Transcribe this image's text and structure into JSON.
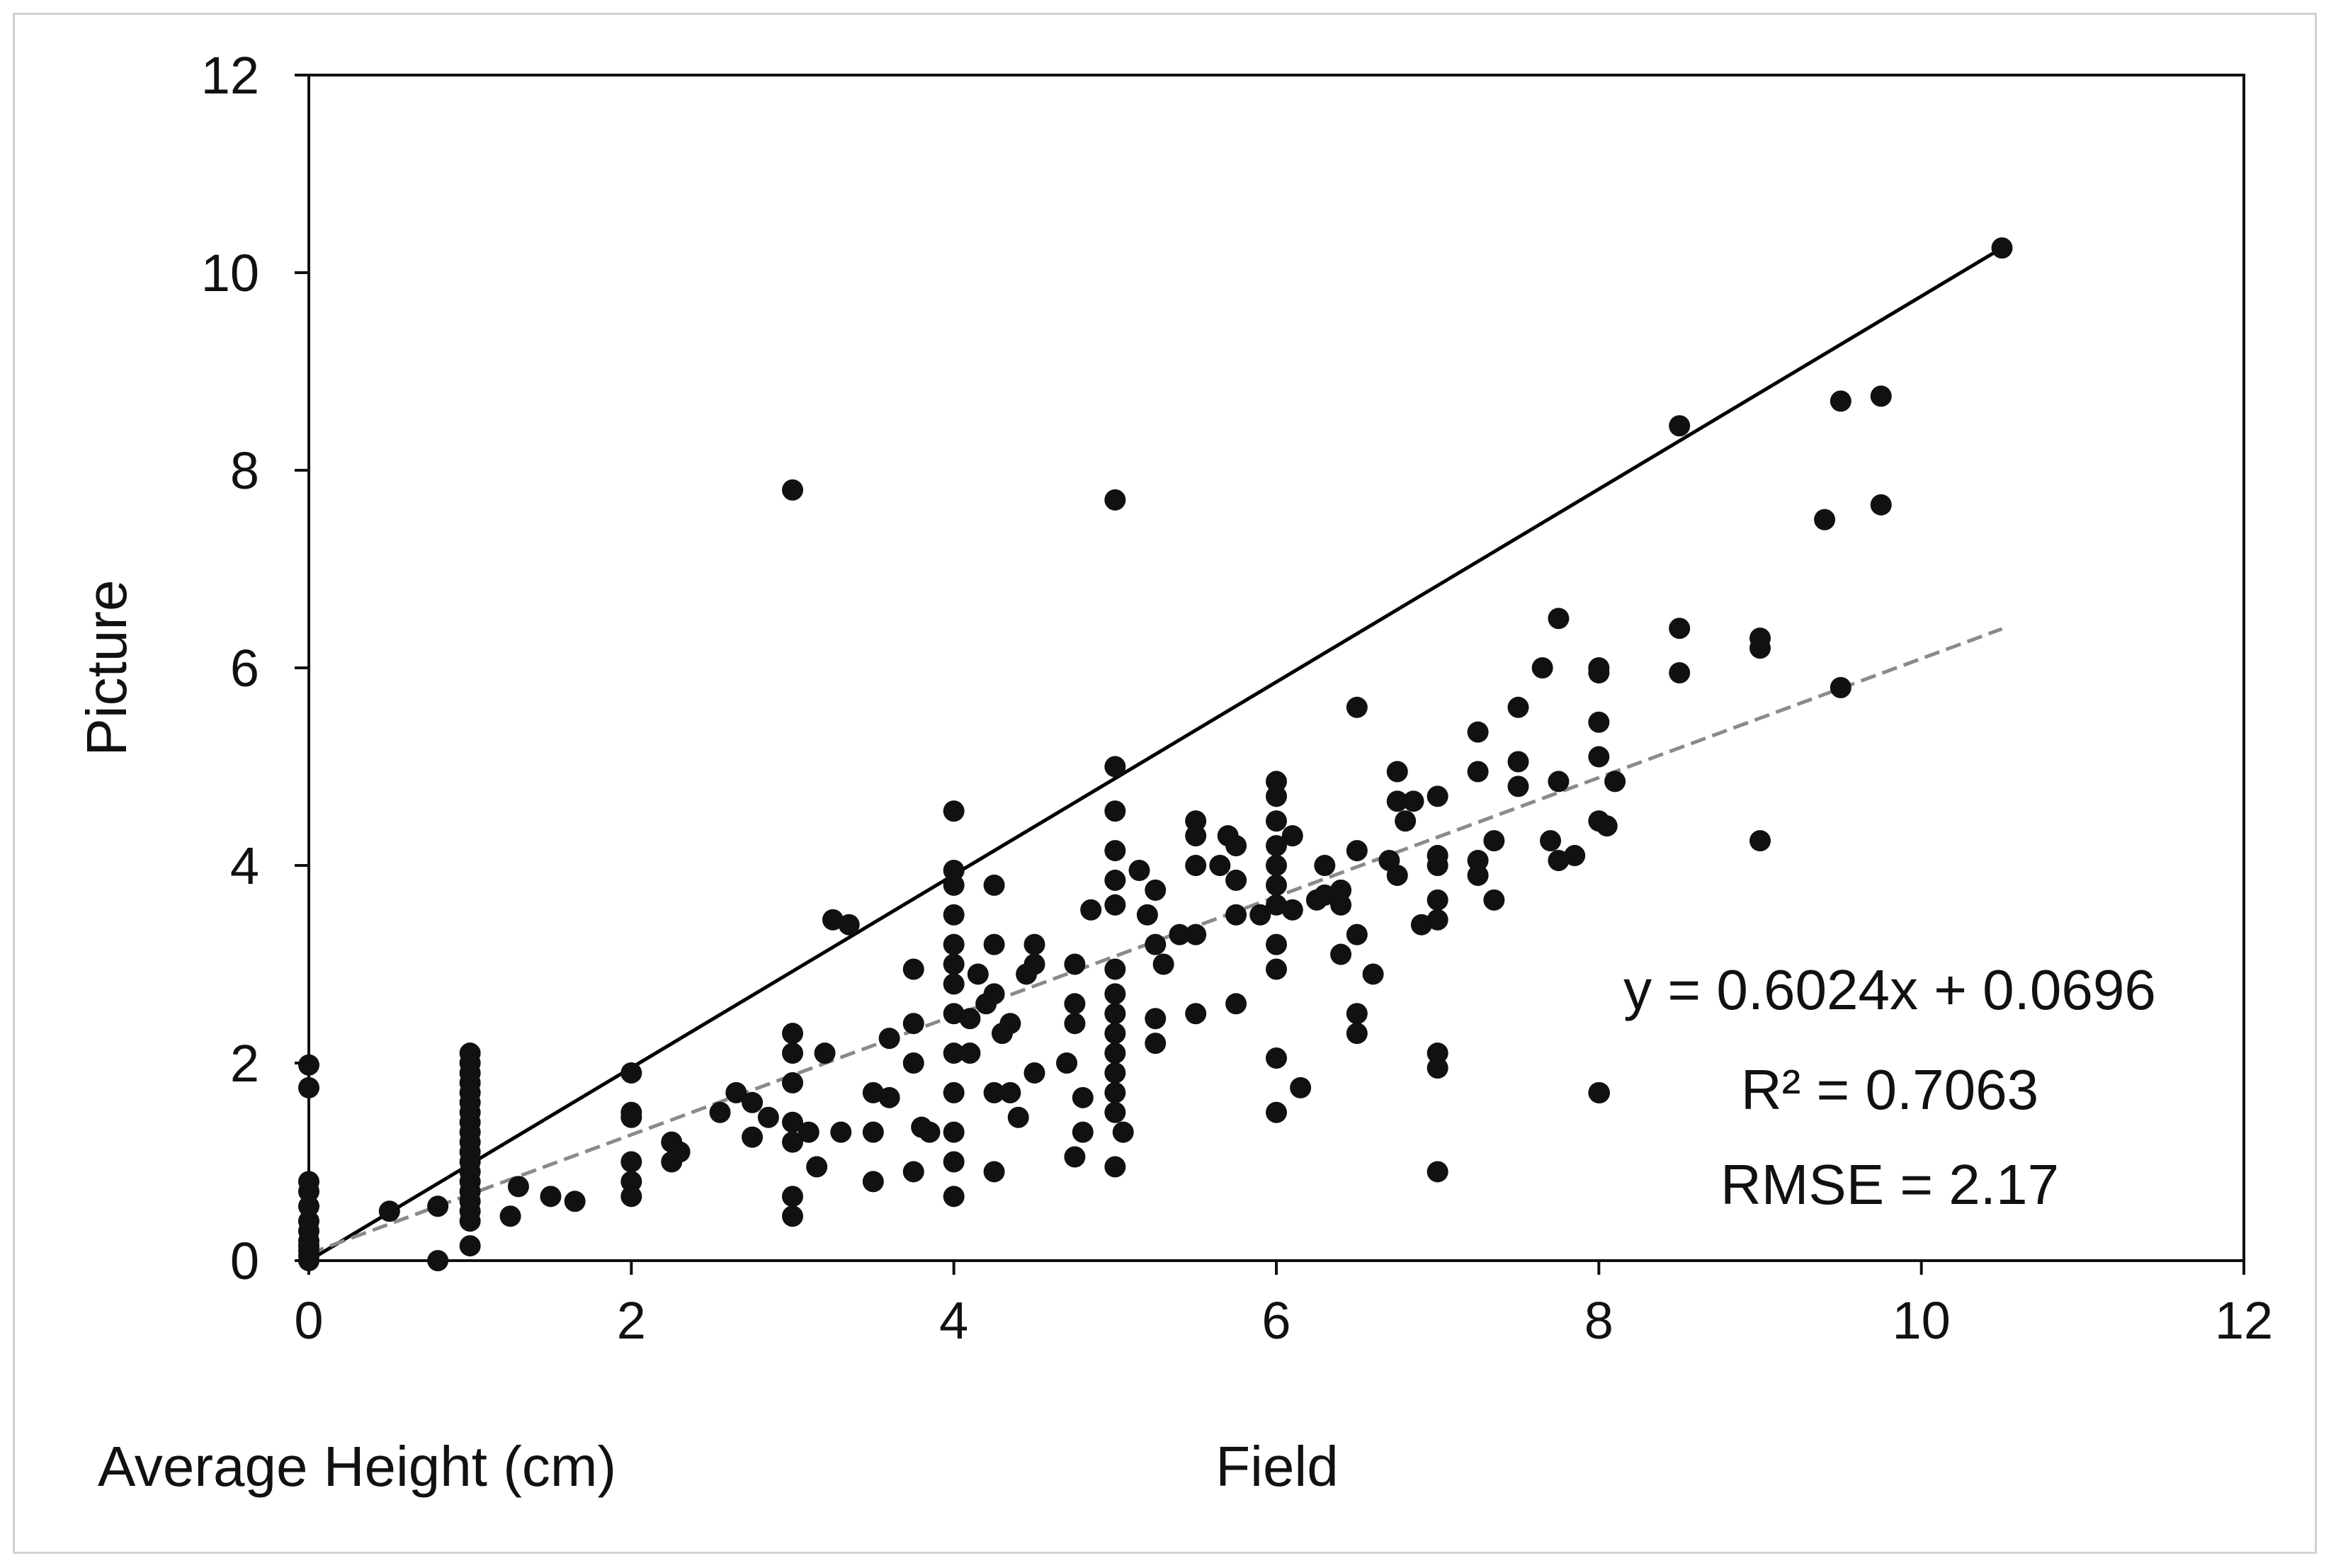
{
  "chart_data": {
    "type": "scatter",
    "title": "",
    "xlabel": "Field",
    "ylabel": "Picture",
    "corner_label": "Average Height (cm)",
    "xlim": [
      0,
      12
    ],
    "ylim": [
      0,
      12
    ],
    "xticks": [
      "0",
      "2",
      "4",
      "6",
      "8",
      "10",
      "12"
    ],
    "yticks": [
      "0",
      "2",
      "4",
      "6",
      "8",
      "10",
      "12"
    ],
    "grid": false,
    "legend": "none",
    "series": [
      {
        "name": "observations",
        "points": [
          [
            0,
            0
          ],
          [
            0,
            0.05
          ],
          [
            0,
            0.1
          ],
          [
            0,
            0.15
          ],
          [
            0,
            0.2
          ],
          [
            0,
            0.3
          ],
          [
            0,
            0.4
          ],
          [
            0,
            0.55
          ],
          [
            0,
            0.7
          ],
          [
            0,
            0.8
          ],
          [
            0,
            1.75
          ],
          [
            0,
            1.98
          ],
          [
            0.5,
            0.5
          ],
          [
            0.8,
            0
          ],
          [
            0.8,
            0.55
          ],
          [
            1,
            0.15
          ],
          [
            1,
            0.4
          ],
          [
            1,
            0.5
          ],
          [
            1,
            0.6
          ],
          [
            1,
            0.7
          ],
          [
            1,
            0.8
          ],
          [
            1,
            0.9
          ],
          [
            1,
            1.0
          ],
          [
            1,
            1.1
          ],
          [
            1,
            1.2
          ],
          [
            1,
            1.3
          ],
          [
            1,
            1.4
          ],
          [
            1,
            1.5
          ],
          [
            1,
            1.6
          ],
          [
            1,
            1.7
          ],
          [
            1,
            1.8
          ],
          [
            1,
            1.9
          ],
          [
            1,
            2.0
          ],
          [
            1,
            2.1
          ],
          [
            1.25,
            0.45
          ],
          [
            1.3,
            0.75
          ],
          [
            1.5,
            0.65
          ],
          [
            1.65,
            0.6
          ],
          [
            2,
            0.65
          ],
          [
            2,
            0.8
          ],
          [
            2,
            1.0
          ],
          [
            2,
            1.45
          ],
          [
            2,
            1.5
          ],
          [
            2,
            1.9
          ],
          [
            2.25,
            1.0
          ],
          [
            2.25,
            1.2
          ],
          [
            2.3,
            1.1
          ],
          [
            2.55,
            1.5
          ],
          [
            2.65,
            1.7
          ],
          [
            2.75,
            1.25
          ],
          [
            2.75,
            1.6
          ],
          [
            2.85,
            1.45
          ],
          [
            3,
            0.45
          ],
          [
            3,
            0.65
          ],
          [
            3,
            1.2
          ],
          [
            3,
            1.4
          ],
          [
            3,
            1.8
          ],
          [
            3,
            2.1
          ],
          [
            3,
            2.3
          ],
          [
            3,
            7.8
          ],
          [
            3.1,
            1.3
          ],
          [
            3.15,
            0.95
          ],
          [
            3.2,
            2.1
          ],
          [
            3.25,
            3.45
          ],
          [
            3.3,
            1.3
          ],
          [
            3.35,
            3.4
          ],
          [
            3.5,
            0.8
          ],
          [
            3.5,
            1.3
          ],
          [
            3.5,
            1.7
          ],
          [
            3.6,
            1.65
          ],
          [
            3.6,
            2.25
          ],
          [
            3.75,
            0.9
          ],
          [
            3.75,
            2.0
          ],
          [
            3.75,
            2.4
          ],
          [
            3.75,
            2.95
          ],
          [
            3.8,
            1.35
          ],
          [
            3.85,
            1.3
          ],
          [
            4,
            0.65
          ],
          [
            4,
            1.0
          ],
          [
            4,
            1.3
          ],
          [
            4,
            1.7
          ],
          [
            4,
            2.1
          ],
          [
            4,
            2.5
          ],
          [
            4,
            2.8
          ],
          [
            4,
            3.0
          ],
          [
            4,
            3.2
          ],
          [
            4,
            3.5
          ],
          [
            4,
            3.8
          ],
          [
            4,
            3.95
          ],
          [
            4,
            4.55
          ],
          [
            4.1,
            2.1
          ],
          [
            4.1,
            2.45
          ],
          [
            4.15,
            2.9
          ],
          [
            4.2,
            2.6
          ],
          [
            4.25,
            0.9
          ],
          [
            4.25,
            1.7
          ],
          [
            4.25,
            2.7
          ],
          [
            4.25,
            3.2
          ],
          [
            4.25,
            3.8
          ],
          [
            4.3,
            2.3
          ],
          [
            4.35,
            2.4
          ],
          [
            4.35,
            1.7
          ],
          [
            4.4,
            1.45
          ],
          [
            4.45,
            2.9
          ],
          [
            4.5,
            1.9
          ],
          [
            4.5,
            3.0
          ],
          [
            4.5,
            3.2
          ],
          [
            4.7,
            2.0
          ],
          [
            4.75,
            1.05
          ],
          [
            4.75,
            2.4
          ],
          [
            4.75,
            2.6
          ],
          [
            4.75,
            3.0
          ],
          [
            4.8,
            1.3
          ],
          [
            4.8,
            1.65
          ],
          [
            4.85,
            3.55
          ],
          [
            5,
            0.95
          ],
          [
            5,
            1.5
          ],
          [
            5,
            1.7
          ],
          [
            5,
            1.9
          ],
          [
            5,
            2.1
          ],
          [
            5,
            2.3
          ],
          [
            5,
            2.5
          ],
          [
            5,
            2.7
          ],
          [
            5,
            2.95
          ],
          [
            5,
            3.6
          ],
          [
            5,
            3.85
          ],
          [
            5,
            4.15
          ],
          [
            5,
            4.55
          ],
          [
            5,
            5.0
          ],
          [
            5,
            7.7
          ],
          [
            5.05,
            1.3
          ],
          [
            5.15,
            3.95
          ],
          [
            5.2,
            3.5
          ],
          [
            5.25,
            2.2
          ],
          [
            5.25,
            2.45
          ],
          [
            5.25,
            3.2
          ],
          [
            5.25,
            3.75
          ],
          [
            5.3,
            3.0
          ],
          [
            5.4,
            3.3
          ],
          [
            5.5,
            2.5
          ],
          [
            5.5,
            3.3
          ],
          [
            5.5,
            4.0
          ],
          [
            5.5,
            4.3
          ],
          [
            5.5,
            4.45
          ],
          [
            5.65,
            4.0
          ],
          [
            5.7,
            4.3
          ],
          [
            5.75,
            2.6
          ],
          [
            5.75,
            3.5
          ],
          [
            5.75,
            3.85
          ],
          [
            5.75,
            4.2
          ],
          [
            5.9,
            3.5
          ],
          [
            6,
            1.5
          ],
          [
            6,
            2.05
          ],
          [
            6,
            2.95
          ],
          [
            6,
            3.2
          ],
          [
            6,
            3.6
          ],
          [
            6,
            3.8
          ],
          [
            6,
            4.0
          ],
          [
            6,
            4.2
          ],
          [
            6,
            4.45
          ],
          [
            6,
            4.7
          ],
          [
            6,
            4.85
          ],
          [
            6.1,
            3.55
          ],
          [
            6.1,
            4.3
          ],
          [
            6.15,
            1.75
          ],
          [
            6.25,
            3.65
          ],
          [
            6.3,
            3.7
          ],
          [
            6.3,
            4.0
          ],
          [
            6.4,
            3.6
          ],
          [
            6.4,
            3.75
          ],
          [
            6.4,
            3.1
          ],
          [
            6.5,
            2.3
          ],
          [
            6.5,
            2.5
          ],
          [
            6.5,
            3.3
          ],
          [
            6.5,
            4.15
          ],
          [
            6.5,
            5.6
          ],
          [
            6.6,
            2.9
          ],
          [
            6.7,
            4.05
          ],
          [
            6.75,
            3.9
          ],
          [
            6.75,
            4.65
          ],
          [
            6.75,
            4.95
          ],
          [
            6.8,
            4.45
          ],
          [
            6.85,
            4.65
          ],
          [
            6.9,
            3.4
          ],
          [
            7,
            0.9
          ],
          [
            7,
            1.95
          ],
          [
            7,
            2.1
          ],
          [
            7,
            3.45
          ],
          [
            7,
            3.65
          ],
          [
            7,
            4.0
          ],
          [
            7,
            4.1
          ],
          [
            7,
            4.7
          ],
          [
            7.25,
            3.9
          ],
          [
            7.25,
            4.05
          ],
          [
            7.25,
            4.95
          ],
          [
            7.25,
            5.35
          ],
          [
            7.35,
            3.65
          ],
          [
            7.35,
            4.25
          ],
          [
            7.5,
            4.8
          ],
          [
            7.5,
            5.05
          ],
          [
            7.5,
            5.6
          ],
          [
            7.65,
            6.0
          ],
          [
            7.7,
            4.25
          ],
          [
            7.75,
            4.05
          ],
          [
            7.75,
            4.85
          ],
          [
            7.75,
            6.5
          ],
          [
            7.85,
            4.1
          ],
          [
            8,
            4.45
          ],
          [
            8,
            5.1
          ],
          [
            8,
            5.45
          ],
          [
            8,
            5.95
          ],
          [
            8,
            6.0
          ],
          [
            8,
            1.7
          ],
          [
            8.05,
            4.4
          ],
          [
            8.1,
            4.85
          ],
          [
            8.5,
            5.95
          ],
          [
            8.5,
            6.4
          ],
          [
            8.5,
            8.45
          ],
          [
            9,
            4.25
          ],
          [
            9,
            6.2
          ],
          [
            9,
            6.3
          ],
          [
            9.4,
            7.5
          ],
          [
            9.5,
            5.8
          ],
          [
            9.5,
            8.7
          ],
          [
            9.75,
            7.65
          ],
          [
            9.75,
            8.75
          ],
          [
            10.5,
            10.25
          ]
        ]
      }
    ],
    "reference_line": {
      "name": "1:1 line",
      "x": [
        0,
        10.5
      ],
      "y": [
        0,
        10.25
      ],
      "color": "#000000",
      "style": "solid"
    },
    "trendline": {
      "name": "linear fit",
      "slope": 0.6024,
      "intercept": 0.0696,
      "x": [
        0,
        10.5
      ],
      "color": "#8a8a8a",
      "style": "dashed"
    },
    "annotations": {
      "equation": "y = 0.6024x + 0.0696",
      "r_squared": "R² = 0.7063",
      "rmse": "RMSE = 2.17"
    }
  }
}
